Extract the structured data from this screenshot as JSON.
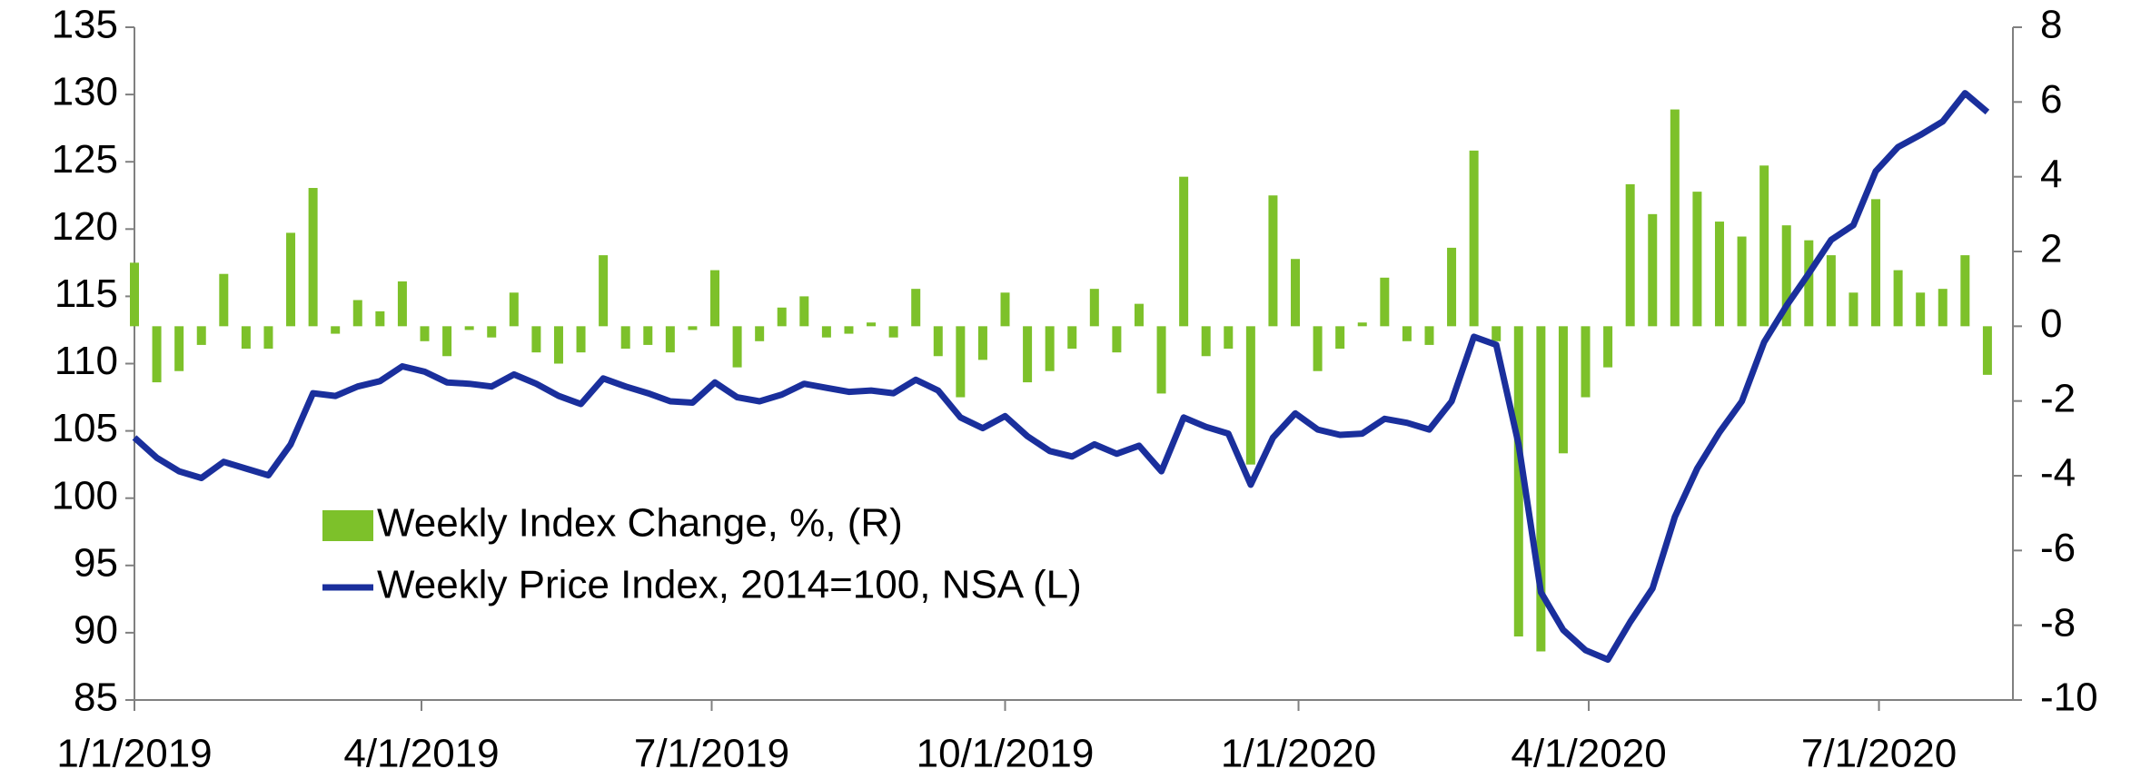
{
  "chart_data": {
    "type": "bar-line",
    "x": [
      "1/1/2019",
      "1/8/2019",
      "1/15/2019",
      "1/22/2019",
      "1/29/2019",
      "2/5/2019",
      "2/12/2019",
      "2/19/2019",
      "2/26/2019",
      "3/5/2019",
      "3/12/2019",
      "3/19/2019",
      "3/26/2019",
      "4/2/2019",
      "4/9/2019",
      "4/16/2019",
      "4/23/2019",
      "4/30/2019",
      "5/7/2019",
      "5/14/2019",
      "5/21/2019",
      "5/28/2019",
      "6/4/2019",
      "6/11/2019",
      "6/18/2019",
      "6/25/2019",
      "7/2/2019",
      "7/9/2019",
      "7/16/2019",
      "7/23/2019",
      "7/30/2019",
      "8/6/2019",
      "8/13/2019",
      "8/20/2019",
      "8/27/2019",
      "9/3/2019",
      "9/10/2019",
      "9/17/2019",
      "9/24/2019",
      "10/1/2019",
      "10/8/2019",
      "10/15/2019",
      "10/22/2019",
      "10/29/2019",
      "11/5/2019",
      "11/12/2019",
      "11/19/2019",
      "11/26/2019",
      "12/3/2019",
      "12/10/2019",
      "12/17/2019",
      "12/24/2019",
      "12/31/2019",
      "1/7/2020",
      "1/14/2020",
      "1/21/2020",
      "1/28/2020",
      "2/4/2020",
      "2/11/2020",
      "2/18/2020",
      "2/25/2020",
      "3/3/2020",
      "3/10/2020",
      "3/17/2020",
      "3/24/2020",
      "3/31/2020",
      "4/7/2020",
      "4/14/2020",
      "4/21/2020",
      "4/28/2020",
      "5/5/2020",
      "5/12/2020",
      "5/19/2020",
      "5/26/2020",
      "6/2/2020",
      "6/9/2020",
      "6/16/2020",
      "6/23/2020",
      "6/30/2020",
      "7/7/2020",
      "7/14/2020",
      "7/21/2020",
      "7/28/2020",
      "8/4/2020"
    ],
    "series": [
      {
        "name": "Weekly Index Change, %, (R)",
        "type": "bar",
        "axis": "y2",
        "color": "#7dc12a",
        "values": [
          1.7,
          -1.5,
          -1.2,
          -0.5,
          1.4,
          -0.6,
          -0.6,
          2.5,
          3.7,
          -0.2,
          0.7,
          0.4,
          1.2,
          -0.4,
          -0.8,
          -0.1,
          -0.3,
          0.9,
          -0.7,
          -1,
          -0.7,
          1.9,
          -0.6,
          -0.5,
          -0.7,
          -0.1,
          1.5,
          -1.1,
          -0.4,
          0.5,
          0.8,
          -0.3,
          -0.2,
          0.1,
          -0.3,
          1,
          -0.8,
          -1.9,
          -0.9,
          0.9,
          -1.5,
          -1.2,
          -0.6,
          1,
          -0.7,
          0.6,
          -1.8,
          4,
          -0.8,
          -0.6,
          -3.7,
          3.5,
          1.8,
          -1.2,
          -0.6,
          0.1,
          1.3,
          -0.4,
          -0.5,
          2.1,
          4.7,
          -0.4,
          -8.3,
          -8.7,
          -3.4,
          -1.9,
          -1.1,
          3.8,
          3,
          5.8,
          3.6,
          2.8,
          2.4,
          4.3,
          2.7,
          2.3,
          1.9,
          0.9,
          3.4,
          1.5,
          0.9,
          1,
          1.9,
          -1.3
        ]
      },
      {
        "name": "Weekly Price Index, 2014=100, NSA (L)",
        "type": "line",
        "color": "#1a2f9c",
        "values": [
          104.5,
          103,
          102,
          101.5,
          102.7,
          102.2,
          101.7,
          104,
          107.8,
          107.6,
          108.3,
          108.7,
          109.8,
          109.4,
          108.6,
          108.5,
          108.3,
          109.2,
          108.5,
          107.6,
          107,
          108.9,
          108.3,
          107.8,
          107.2,
          107.1,
          108.6,
          107.5,
          107.2,
          107.7,
          108.5,
          108.2,
          107.9,
          108,
          107.8,
          108.8,
          108,
          106,
          105.2,
          106.1,
          104.6,
          103.5,
          103.1,
          104,
          103.3,
          103.9,
          102,
          106,
          105.3,
          104.8,
          101,
          104.5,
          106.3,
          105.1,
          104.7,
          104.8,
          105.9,
          105.6,
          105.1,
          107.2,
          112,
          111.4,
          104,
          93,
          90.2,
          88.7,
          88,
          90.8,
          93.3,
          98.6,
          102.2,
          104.9,
          107.2,
          111.6,
          114.3,
          116.7,
          119.2,
          120.3,
          124.3,
          126.1,
          127,
          128,
          130.1,
          128.7
        ]
      }
    ],
    "xlim": [
      "1/1/2019",
      "8/12/2020"
    ],
    "xticks": [
      "1/1/2019",
      "4/1/2019",
      "7/1/2019",
      "10/1/2019",
      "1/1/2020",
      "4/1/2020",
      "7/1/2020"
    ],
    "ylim": [
      85,
      135
    ],
    "yticks": [
      85,
      90,
      95,
      100,
      105,
      110,
      115,
      120,
      125,
      130,
      135
    ],
    "y2lim": [
      -10,
      8
    ],
    "y2ticks": [
      -10,
      -8,
      -6,
      -4,
      -2,
      0,
      2,
      4,
      6,
      8
    ]
  }
}
